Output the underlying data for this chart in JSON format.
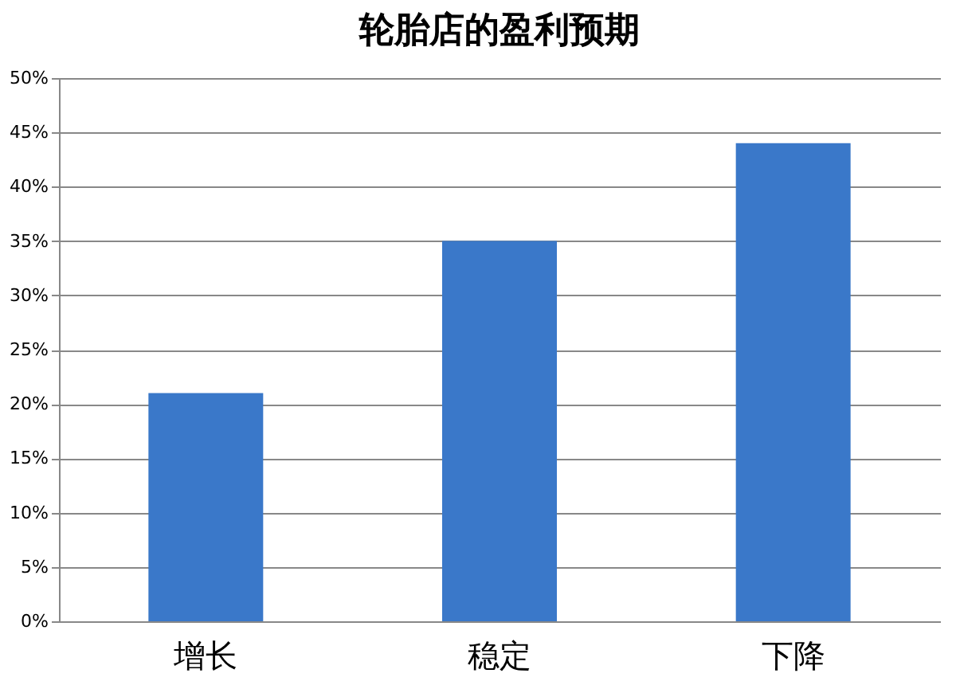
{
  "chart_data": {
    "type": "bar",
    "title": "轮胎店的盈利预期",
    "categories": [
      "增长",
      "稳定",
      "下降"
    ],
    "values": [
      21,
      35,
      44
    ],
    "color": "#3a78c9",
    "ylim": [
      0,
      50
    ],
    "yticks": [
      {
        "value": 0,
        "label": "0%"
      },
      {
        "value": 5,
        "label": "5%"
      },
      {
        "value": 10,
        "label": "10%"
      },
      {
        "value": 15,
        "label": "15%"
      },
      {
        "value": 20,
        "label": "20%"
      },
      {
        "value": 25,
        "label": "25%"
      },
      {
        "value": 30,
        "label": "30%"
      },
      {
        "value": 35,
        "label": "35%"
      },
      {
        "value": 40,
        "label": "40%"
      },
      {
        "value": 45,
        "label": "45%"
      },
      {
        "value": 50,
        "label": "50%"
      }
    ],
    "grid": "y"
  }
}
